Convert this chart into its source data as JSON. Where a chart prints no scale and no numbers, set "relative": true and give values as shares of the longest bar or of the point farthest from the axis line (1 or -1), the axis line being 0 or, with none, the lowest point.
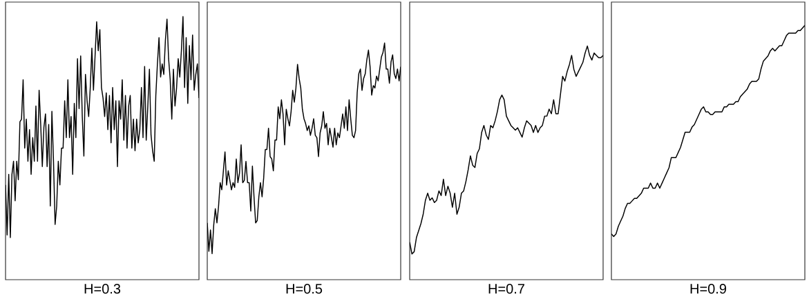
{
  "chart_data": [
    {
      "type": "line",
      "relative": true,
      "xlabel": "H=0.3",
      "color": "#000000",
      "categories": [
        null,
        null,
        null,
        null,
        null,
        null,
        null,
        null,
        null,
        null,
        null,
        null,
        null,
        null,
        null,
        null,
        null,
        null,
        null,
        null,
        null,
        null,
        null,
        null,
        null,
        null,
        null,
        null,
        null,
        null,
        null,
        null,
        null,
        null,
        null,
        null,
        null,
        null,
        null,
        null,
        null,
        null,
        null,
        null,
        null,
        null,
        null,
        null,
        null,
        null,
        null,
        null,
        null,
        null,
        null,
        null,
        null,
        null,
        null,
        null,
        null,
        null,
        null,
        null,
        null,
        null,
        null,
        null,
        null,
        null,
        null,
        null,
        null,
        null,
        null,
        null,
        null,
        null,
        null,
        null,
        null,
        null,
        null,
        null,
        null,
        null,
        null,
        null,
        null,
        null,
        null,
        null,
        null,
        null,
        null,
        null,
        null,
        null,
        null,
        null,
        null,
        null,
        null,
        null,
        null,
        null,
        null,
        null,
        null,
        null,
        null,
        null,
        null,
        null,
        null,
        null,
        null,
        null,
        null,
        null,
        null,
        null
      ],
      "values": [
        0.36,
        0.17,
        0.4,
        0.16,
        0.4,
        0.45,
        0.3,
        0.45,
        0.38,
        0.6,
        0.61,
        0.76,
        0.5,
        0.61,
        0.45,
        0.57,
        0.4,
        0.54,
        0.45,
        0.66,
        0.45,
        0.72,
        0.59,
        0.43,
        0.58,
        0.63,
        0.43,
        0.59,
        0.28,
        0.64,
        0.45,
        0.21,
        0.28,
        0.45,
        0.36,
        0.5,
        0.5,
        0.68,
        0.54,
        0.76,
        0.54,
        0.62,
        0.4,
        0.67,
        0.54,
        0.84,
        0.65,
        0.85,
        0.62,
        0.47,
        0.78,
        0.68,
        0.62,
        0.73,
        0.88,
        0.72,
        0.85,
        0.98,
        0.87,
        0.95,
        0.73,
        0.69,
        0.62,
        0.71,
        0.57,
        0.7,
        0.52,
        0.73,
        0.57,
        0.68,
        0.43,
        0.68,
        0.61,
        0.76,
        0.53,
        0.7,
        0.5,
        0.66,
        0.7,
        0.5,
        0.61,
        0.49,
        0.61,
        0.52,
        0.57,
        0.73,
        0.54,
        0.81,
        0.53,
        0.66,
        0.8,
        0.55,
        0.49,
        0.45,
        0.7,
        0.82,
        0.92,
        0.77,
        0.82,
        0.78,
        0.91,
        0.99,
        0.84,
        0.76,
        0.61,
        0.8,
        0.66,
        0.73,
        0.84,
        0.77,
        0.87,
        1,
        0.73,
        0.92,
        0.67,
        0.89,
        0.76,
        0.93,
        0.72,
        0.78,
        0.82,
        0.69
      ]
    },
    {
      "type": "line",
      "relative": true,
      "xlabel": "H=0.5",
      "color": "#000000",
      "categories": [
        null,
        null,
        null,
        null,
        null,
        null,
        null,
        null,
        null,
        null,
        null,
        null,
        null,
        null,
        null,
        null,
        null,
        null,
        null,
        null,
        null,
        null,
        null,
        null,
        null,
        null,
        null,
        null,
        null,
        null,
        null,
        null,
        null,
        null,
        null,
        null,
        null,
        null,
        null,
        null,
        null,
        null,
        null,
        null,
        null,
        null,
        null,
        null,
        null,
        null,
        null,
        null,
        null,
        null,
        null,
        null,
        null,
        null,
        null,
        null,
        null,
        null,
        null,
        null,
        null,
        null,
        null,
        null,
        null,
        null,
        null,
        null,
        null,
        null,
        null,
        null,
        null,
        null,
        null,
        null,
        null,
        null,
        null,
        null,
        null,
        null,
        null,
        null,
        null,
        null,
        null,
        null,
        null,
        null,
        null,
        null,
        null,
        null,
        null,
        null,
        null,
        null,
        null,
        null,
        null,
        null,
        null,
        null,
        null,
        null,
        null,
        null,
        null,
        null,
        null,
        null,
        null,
        null,
        null,
        null,
        null
      ],
      "values": [
        0.24,
        0.12,
        0.21,
        0.11,
        0.23,
        0.3,
        0.24,
        0.31,
        0.41,
        0.38,
        0.46,
        0.54,
        0.4,
        0.46,
        0.42,
        0.38,
        0.41,
        0.39,
        0.51,
        0.41,
        0.45,
        0.57,
        0.41,
        0.42,
        0.5,
        0.41,
        0.41,
        0.29,
        0.48,
        0.35,
        0.24,
        0.25,
        0.35,
        0.41,
        0.35,
        0.43,
        0.55,
        0.55,
        0.64,
        0.52,
        0.51,
        0.46,
        0.59,
        0.59,
        0.73,
        0.68,
        0.76,
        0.7,
        0.57,
        0.72,
        0.68,
        0.65,
        0.71,
        0.8,
        0.75,
        0.81,
        0.91,
        0.85,
        0.81,
        0.72,
        0.68,
        0.66,
        0.63,
        0.65,
        0.61,
        0.64,
        0.68,
        0.61,
        0.6,
        0.52,
        0.62,
        0.65,
        0.71,
        0.64,
        0.66,
        0.57,
        0.64,
        0.6,
        0.56,
        0.64,
        0.57,
        0.62,
        0.6,
        0.65,
        0.7,
        0.64,
        0.73,
        0.63,
        0.76,
        0.68,
        0.61,
        0.6,
        0.63,
        0.79,
        0.87,
        0.89,
        0.8,
        0.85,
        0.87,
        0.93,
        0.97,
        0.9,
        0.78,
        0.82,
        0.81,
        0.86,
        0.84,
        0.89,
        0.94,
        0.96,
        1,
        0.89,
        0.89,
        0.83,
        0.92,
        0.95,
        0.87,
        0.85,
        0.89,
        0.84,
        0.9
      ]
    },
    {
      "type": "line",
      "relative": true,
      "xlabel": "H=0.7",
      "color": "#000000",
      "categories": [
        null,
        null,
        null,
        null,
        null,
        null,
        null,
        null,
        null,
        null,
        null,
        null,
        null,
        null,
        null,
        null,
        null,
        null,
        null,
        null,
        null,
        null,
        null,
        null,
        null,
        null,
        null,
        null,
        null,
        null,
        null,
        null,
        null,
        null,
        null,
        null,
        null,
        null,
        null,
        null,
        null,
        null,
        null,
        null,
        null,
        null,
        null,
        null,
        null,
        null,
        null,
        null,
        null,
        null,
        null,
        null,
        null,
        null,
        null,
        null,
        null,
        null,
        null,
        null,
        null,
        null,
        null,
        null,
        null,
        null,
        null,
        null,
        null,
        null,
        null,
        null,
        null,
        null,
        null,
        null,
        null,
        null,
        null,
        null,
        null,
        null,
        null
      ],
      "values": [
        0.16,
        0.11,
        0.12,
        0.18,
        0.21,
        0.24,
        0.28,
        0.34,
        0.37,
        0.34,
        0.35,
        0.33,
        0.34,
        0.38,
        0.36,
        0.43,
        0.36,
        0.4,
        0.37,
        0.31,
        0.37,
        0.28,
        0.31,
        0.37,
        0.38,
        0.42,
        0.47,
        0.53,
        0.49,
        0.48,
        0.54,
        0.56,
        0.63,
        0.66,
        0.62,
        0.6,
        0.66,
        0.65,
        0.68,
        0.72,
        0.77,
        0.79,
        0.77,
        0.7,
        0.68,
        0.66,
        0.65,
        0.64,
        0.65,
        0.63,
        0.61,
        0.65,
        0.68,
        0.67,
        0.66,
        0.63,
        0.66,
        0.63,
        0.65,
        0.66,
        0.7,
        0.7,
        0.73,
        0.71,
        0.77,
        0.71,
        0.71,
        0.79,
        0.87,
        0.85,
        0.89,
        0.92,
        0.96,
        0.9,
        0.87,
        0.89,
        0.91,
        0.93,
        0.97,
        1,
        0.96,
        0.94,
        0.97,
        0.96,
        0.95,
        0.95,
        0.96
      ]
    },
    {
      "type": "line",
      "relative": true,
      "xlabel": "H=0.9",
      "color": "#000000",
      "categories": [
        null,
        null,
        null,
        null,
        null,
        null,
        null,
        null,
        null,
        null,
        null,
        null,
        null,
        null,
        null,
        null,
        null,
        null,
        null,
        null,
        null,
        null,
        null,
        null,
        null,
        null,
        null,
        null,
        null,
        null,
        null,
        null,
        null,
        null,
        null,
        null,
        null,
        null,
        null,
        null,
        null,
        null,
        null,
        null,
        null,
        null,
        null,
        null,
        null,
        null,
        null,
        null,
        null,
        null,
        null,
        null,
        null,
        null,
        null,
        null,
        null,
        null,
        null,
        null,
        null,
        null,
        null,
        null,
        null,
        null,
        null,
        null,
        null,
        null,
        null,
        null,
        null,
        null,
        null,
        null,
        null,
        null,
        null,
        null,
        null
      ],
      "values": [
        0.18,
        0.17,
        0.18,
        0.21,
        0.23,
        0.25,
        0.28,
        0.3,
        0.3,
        0.31,
        0.32,
        0.32,
        0.33,
        0.34,
        0.36,
        0.36,
        0.36,
        0.38,
        0.36,
        0.36,
        0.38,
        0.36,
        0.38,
        0.4,
        0.42,
        0.44,
        0.48,
        0.48,
        0.48,
        0.5,
        0.52,
        0.55,
        0.58,
        0.58,
        0.58,
        0.6,
        0.61,
        0.63,
        0.65,
        0.67,
        0.68,
        0.66,
        0.66,
        0.65,
        0.65,
        0.66,
        0.66,
        0.66,
        0.66,
        0.68,
        0.68,
        0.69,
        0.69,
        0.69,
        0.7,
        0.7,
        0.72,
        0.73,
        0.74,
        0.75,
        0.77,
        0.78,
        0.78,
        0.78,
        0.79,
        0.83,
        0.86,
        0.87,
        0.88,
        0.9,
        0.91,
        0.9,
        0.91,
        0.92,
        0.92,
        0.94,
        0.96,
        0.97,
        0.97,
        0.97,
        0.97,
        0.98,
        0.98,
        0.99,
        1
      ]
    }
  ]
}
